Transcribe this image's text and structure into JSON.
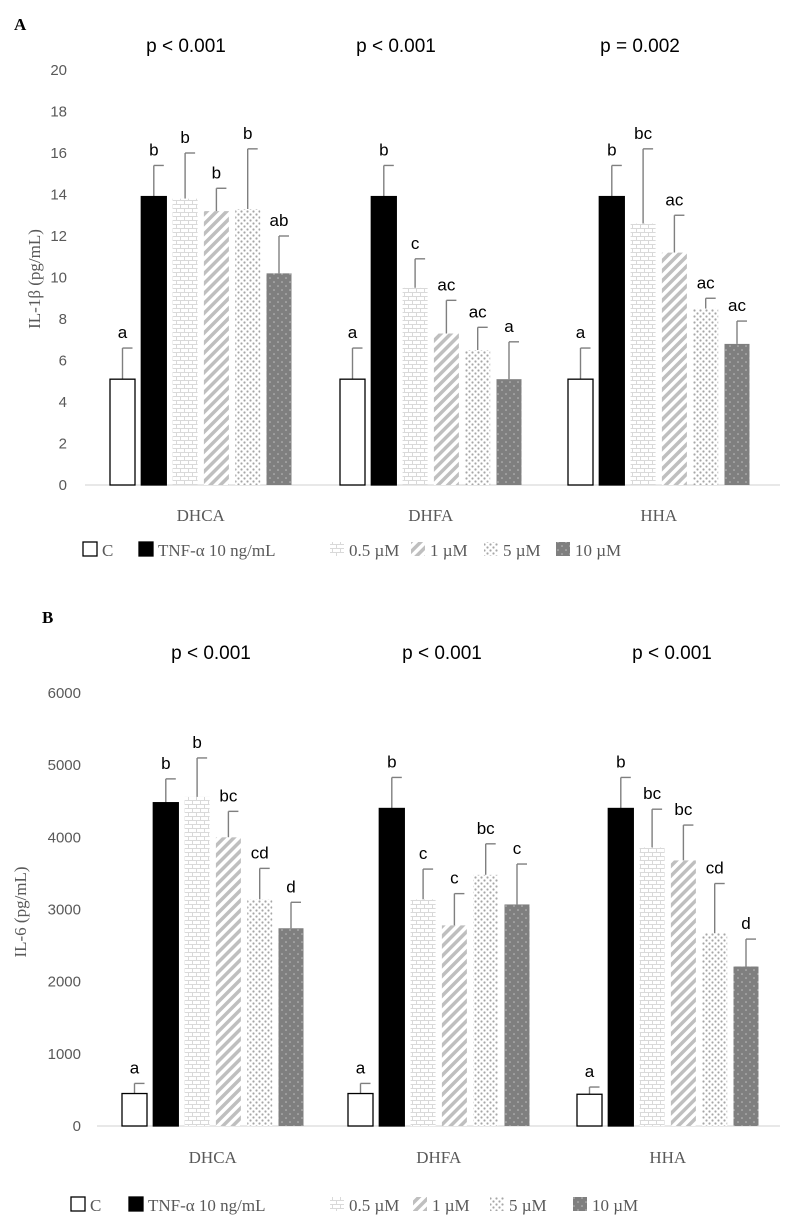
{
  "chart_data": [
    {
      "panel": "A",
      "type": "bar",
      "ylabel": "IL-1β (pg/mL)",
      "ylim": [
        0,
        20
      ],
      "yticks": [
        0,
        2,
        4,
        6,
        8,
        10,
        12,
        14,
        16,
        18,
        20
      ],
      "categories": [
        "DHCA",
        "DHFA",
        "HHA"
      ],
      "p_values": [
        "p < 0.001",
        "p < 0.001",
        "p = 0.002"
      ],
      "series": [
        {
          "name": "C",
          "values": [
            5.1,
            5.1,
            5.1
          ],
          "errors": [
            1.5,
            1.5,
            1.5
          ],
          "letters": [
            "a",
            "a",
            "a"
          ]
        },
        {
          "name": "TNF-α 10 ng/mL",
          "values": [
            13.9,
            13.9,
            13.9
          ],
          "errors": [
            1.5,
            1.5,
            1.5
          ],
          "letters": [
            "b",
            "b",
            "b"
          ]
        },
        {
          "name": "0.5 µM",
          "values": [
            13.8,
            9.5,
            12.6
          ],
          "errors": [
            2.2,
            1.4,
            3.6
          ],
          "letters": [
            "b",
            "c",
            "bc"
          ]
        },
        {
          "name": "1 µM",
          "values": [
            13.2,
            7.3,
            11.2
          ],
          "errors": [
            1.1,
            1.6,
            1.8
          ],
          "letters": [
            "b",
            "ac",
            "ac"
          ]
        },
        {
          "name": "5 µM",
          "values": [
            13.3,
            6.5,
            8.5
          ],
          "errors": [
            2.9,
            1.1,
            0.5
          ],
          "letters": [
            "b",
            "ac",
            "ac"
          ]
        },
        {
          "name": "10 µM",
          "values": [
            10.2,
            5.1,
            6.8
          ],
          "errors": [
            1.8,
            1.8,
            1.1
          ],
          "letters": [
            "ab",
            "a",
            "ac"
          ]
        }
      ]
    },
    {
      "panel": "B",
      "type": "bar",
      "ylabel": "IL-6 (pg/mL)",
      "ylim": [
        0,
        6000
      ],
      "yticks": [
        0,
        1000,
        2000,
        3000,
        4000,
        5000,
        6000
      ],
      "categories": [
        "DHCA",
        "DHFA",
        "HHA"
      ],
      "p_values": [
        "p < 0.001",
        "p < 0.001",
        "p < 0.001"
      ],
      "series": [
        {
          "name": "C",
          "values": [
            450,
            450,
            440
          ],
          "errors": [
            140,
            140,
            100
          ],
          "letters": [
            "a",
            "a",
            "a"
          ]
        },
        {
          "name": "TNF-α 10 ng/mL",
          "values": [
            4480,
            4400,
            4400
          ],
          "errors": [
            330,
            430,
            430
          ],
          "letters": [
            "b",
            "b",
            "b"
          ]
        },
        {
          "name": "0.5 µM",
          "values": [
            4560,
            3140,
            3860
          ],
          "errors": [
            540,
            420,
            530
          ],
          "letters": [
            "b",
            "c",
            "bc"
          ]
        },
        {
          "name": "1 µM",
          "values": [
            4000,
            2780,
            3680
          ],
          "errors": [
            360,
            440,
            490
          ],
          "letters": [
            "bc",
            "c",
            "bc"
          ]
        },
        {
          "name": "5 µM",
          "values": [
            3140,
            3480,
            2670
          ],
          "errors": [
            430,
            430,
            690
          ],
          "letters": [
            "cd",
            "bc",
            "cd"
          ]
        },
        {
          "name": "10 µM",
          "values": [
            2740,
            3070,
            2210
          ],
          "errors": [
            360,
            560,
            380
          ],
          "letters": [
            "d",
            "c",
            "d"
          ]
        }
      ]
    }
  ]
}
